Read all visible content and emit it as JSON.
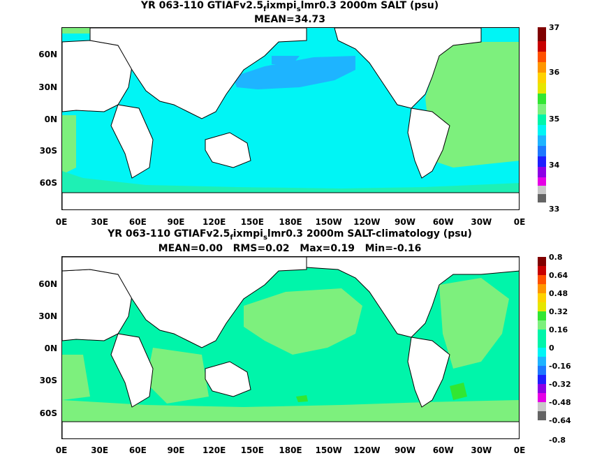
{
  "panel_top": {
    "title_line1_pre": "YR 063-110 GTIAFv2.5",
    "title_sub1": "f",
    "title_mid": "ixmpi",
    "title_sub2": "s",
    "title_post": "lmr0.3 2000m SALT (psu)",
    "title_line2": "MEAN=34.73",
    "colorbar_labels": [
      "37",
      "36",
      "35",
      "34",
      "33"
    ],
    "colors": {
      "ocean_main": "#00f5f5",
      "ocean_pacific_low": "#1eb4ff",
      "ocean_high": "#7df07d",
      "mid": "#1ef0b4"
    }
  },
  "panel_bottom": {
    "title_line1_pre": "YR 063-110 GTIAFv2.5",
    "title_sub1": "f",
    "title_mid": "ixmpi",
    "title_sub2": "s",
    "title_post": "lmr0.3 2000m SALT-climatology (psu)",
    "title_line2": "MEAN=0.00   RMS=0.02   Max=0.19   Min=-0.16",
    "colorbar_labels": [
      "0.8",
      "0.64",
      "0.48",
      "0.32",
      "0.16",
      "0",
      "-0.16",
      "-0.32",
      "-0.48",
      "-0.64",
      "-0.8"
    ],
    "colors": {
      "ocean_main": "#00f5aa",
      "ocean_pos": "#7df07d"
    }
  },
  "axes": {
    "y_labels": [
      "60N",
      "30N",
      "0N",
      "30S",
      "60S"
    ],
    "x_labels": [
      "0E",
      "30E",
      "60E",
      "90E",
      "120E",
      "150E",
      "180E",
      "150W",
      "120W",
      "90W",
      "60W",
      "30W",
      "0E"
    ]
  },
  "colorbar_colors": [
    "#800000",
    "#c80000",
    "#ff5000",
    "#ff9600",
    "#ffd200",
    "#e6e600",
    "#32e632",
    "#7df07d",
    "#00f5aa",
    "#00f5f5",
    "#1eb4ff",
    "#1e78ff",
    "#1e1eff",
    "#8c00e6",
    "#e600e6",
    "#c8c8c8",
    "#646464"
  ]
}
